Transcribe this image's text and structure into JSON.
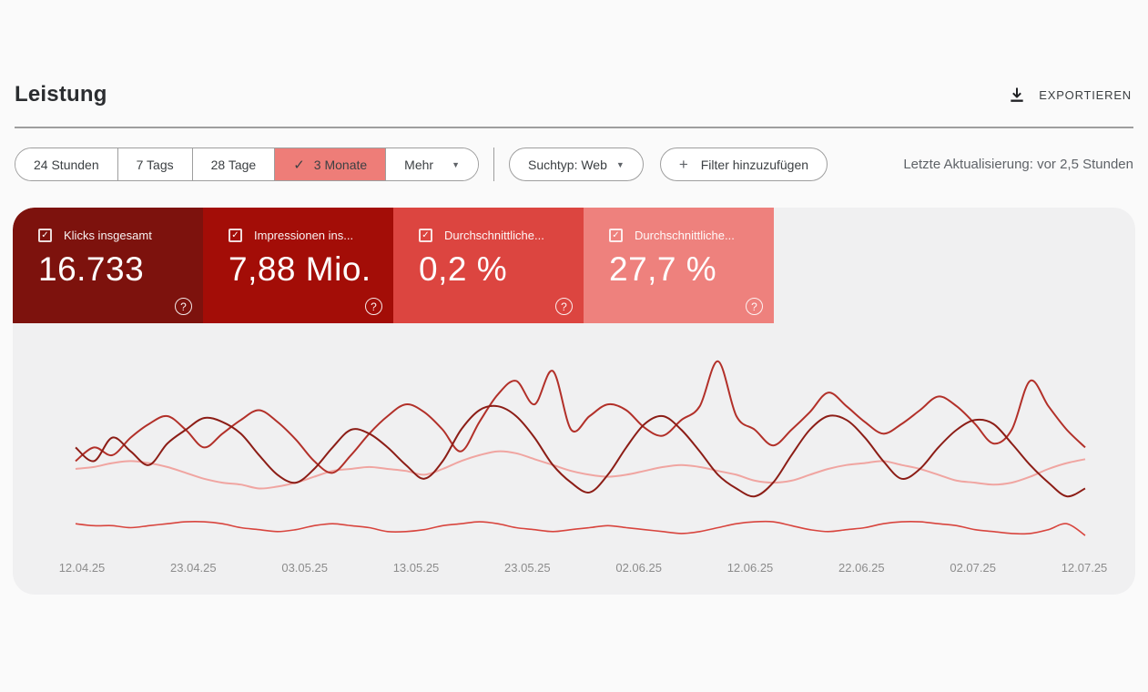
{
  "icons": {
    "check": "✓",
    "dropdown_arrow": "▼",
    "plus": "+",
    "help": "?"
  },
  "header": {
    "title": "Leistung",
    "export_label": "EXPORTIEREN"
  },
  "toolbar": {
    "date_tabs": [
      {
        "label": "24 Stunden",
        "selected": false
      },
      {
        "label": "7 Tags",
        "selected": false
      },
      {
        "label": "28 Tage",
        "selected": false
      },
      {
        "label": "3 Monate",
        "selected": true
      },
      {
        "label": "Mehr",
        "selected": false
      }
    ],
    "search_type_label": "Suchtyp: Web",
    "add_filter_label": "Filter hinzuzufügen",
    "last_update": "Letzte Aktualisierung: vor 2,5 Stunden"
  },
  "metric_cards": [
    {
      "label": "Klicks insgesamt",
      "value": "16.733",
      "color": "#7d120d",
      "checked": true
    },
    {
      "label": "Impressionen ins...",
      "value": "7,88 Mio.",
      "color": "#a30d07",
      "checked": true
    },
    {
      "label": "Durchschnittliche...",
      "value": "0,2 %",
      "color": "#dc4540",
      "checked": true
    },
    {
      "label": "Durchschnittliche...",
      "value": "27,7 %",
      "color": "#ee817d",
      "checked": true
    }
  ],
  "chart_data": {
    "type": "line",
    "title": "",
    "xlabel": "",
    "ylabel": "",
    "y_axis_shown": false,
    "value_units": "relative height 0-100 (no y-axis ticks displayed in chart)",
    "grid": false,
    "legend_position": "none (legend is the metric card strip above)",
    "x_tick_labels": [
      "12.04.25",
      "23.04.25",
      "03.05.25",
      "13.05.25",
      "23.05.25",
      "02.06.25",
      "12.06.25",
      "22.06.25",
      "02.07.25",
      "12.07.25"
    ],
    "series": [
      {
        "name": "Klicks insgesamt",
        "color": "#8c1d16",
        "values": [
          51,
          44,
          56,
          49,
          42,
          53,
          60,
          66,
          64,
          58,
          47,
          37,
          33,
          40,
          51,
          60,
          58,
          51,
          42,
          35,
          44,
          60,
          70,
          72,
          67,
          56,
          42,
          33,
          28,
          37,
          51,
          63,
          67,
          60,
          49,
          37,
          30,
          26,
          33,
          47,
          60,
          67,
          65,
          56,
          44,
          35,
          40,
          51,
          60,
          65,
          63,
          53,
          42,
          33,
          26,
          30
        ]
      },
      {
        "name": "Impressionen insgesamt",
        "color": "#b23029",
        "values": [
          44,
          51,
          47,
          56,
          63,
          67,
          60,
          51,
          58,
          65,
          70,
          64,
          55,
          44,
          38,
          47,
          58,
          67,
          73,
          69,
          60,
          49,
          64,
          78,
          85,
          73,
          90,
          60,
          67,
          73,
          70,
          61,
          57,
          65,
          72,
          95,
          67,
          60,
          52,
          60,
          69,
          79,
          72,
          64,
          58,
          63,
          70,
          77,
          72,
          63,
          53,
          60,
          85,
          72,
          60,
          51
        ]
      },
      {
        "name": "Durchschnittliche CTR",
        "color": "#d8453e",
        "values": [
          12,
          11,
          11,
          10,
          11,
          12,
          13,
          13,
          12,
          10,
          9,
          8,
          9,
          11,
          12,
          11,
          10,
          8,
          8,
          9,
          11,
          12,
          13,
          12,
          10,
          9,
          8,
          9,
          10,
          11,
          10,
          9,
          8,
          7,
          8,
          10,
          12,
          13,
          13,
          11,
          9,
          8,
          9,
          10,
          12,
          13,
          13,
          12,
          11,
          9,
          8,
          7,
          7,
          9,
          12,
          6
        ]
      },
      {
        "name": "Durchschnittliche Position",
        "color": "#f0a5a1",
        "values": [
          40,
          41,
          43,
          44,
          43,
          41,
          38,
          35,
          33,
          32,
          30,
          31,
          33,
          36,
          39,
          40,
          41,
          40,
          39,
          37,
          40,
          44,
          47,
          49,
          48,
          45,
          42,
          39,
          37,
          36,
          37,
          39,
          41,
          42,
          41,
          39,
          37,
          34,
          33,
          34,
          37,
          40,
          42,
          43,
          44,
          42,
          40,
          37,
          34,
          33,
          32,
          33,
          36,
          40,
          43,
          45
        ]
      }
    ]
  }
}
